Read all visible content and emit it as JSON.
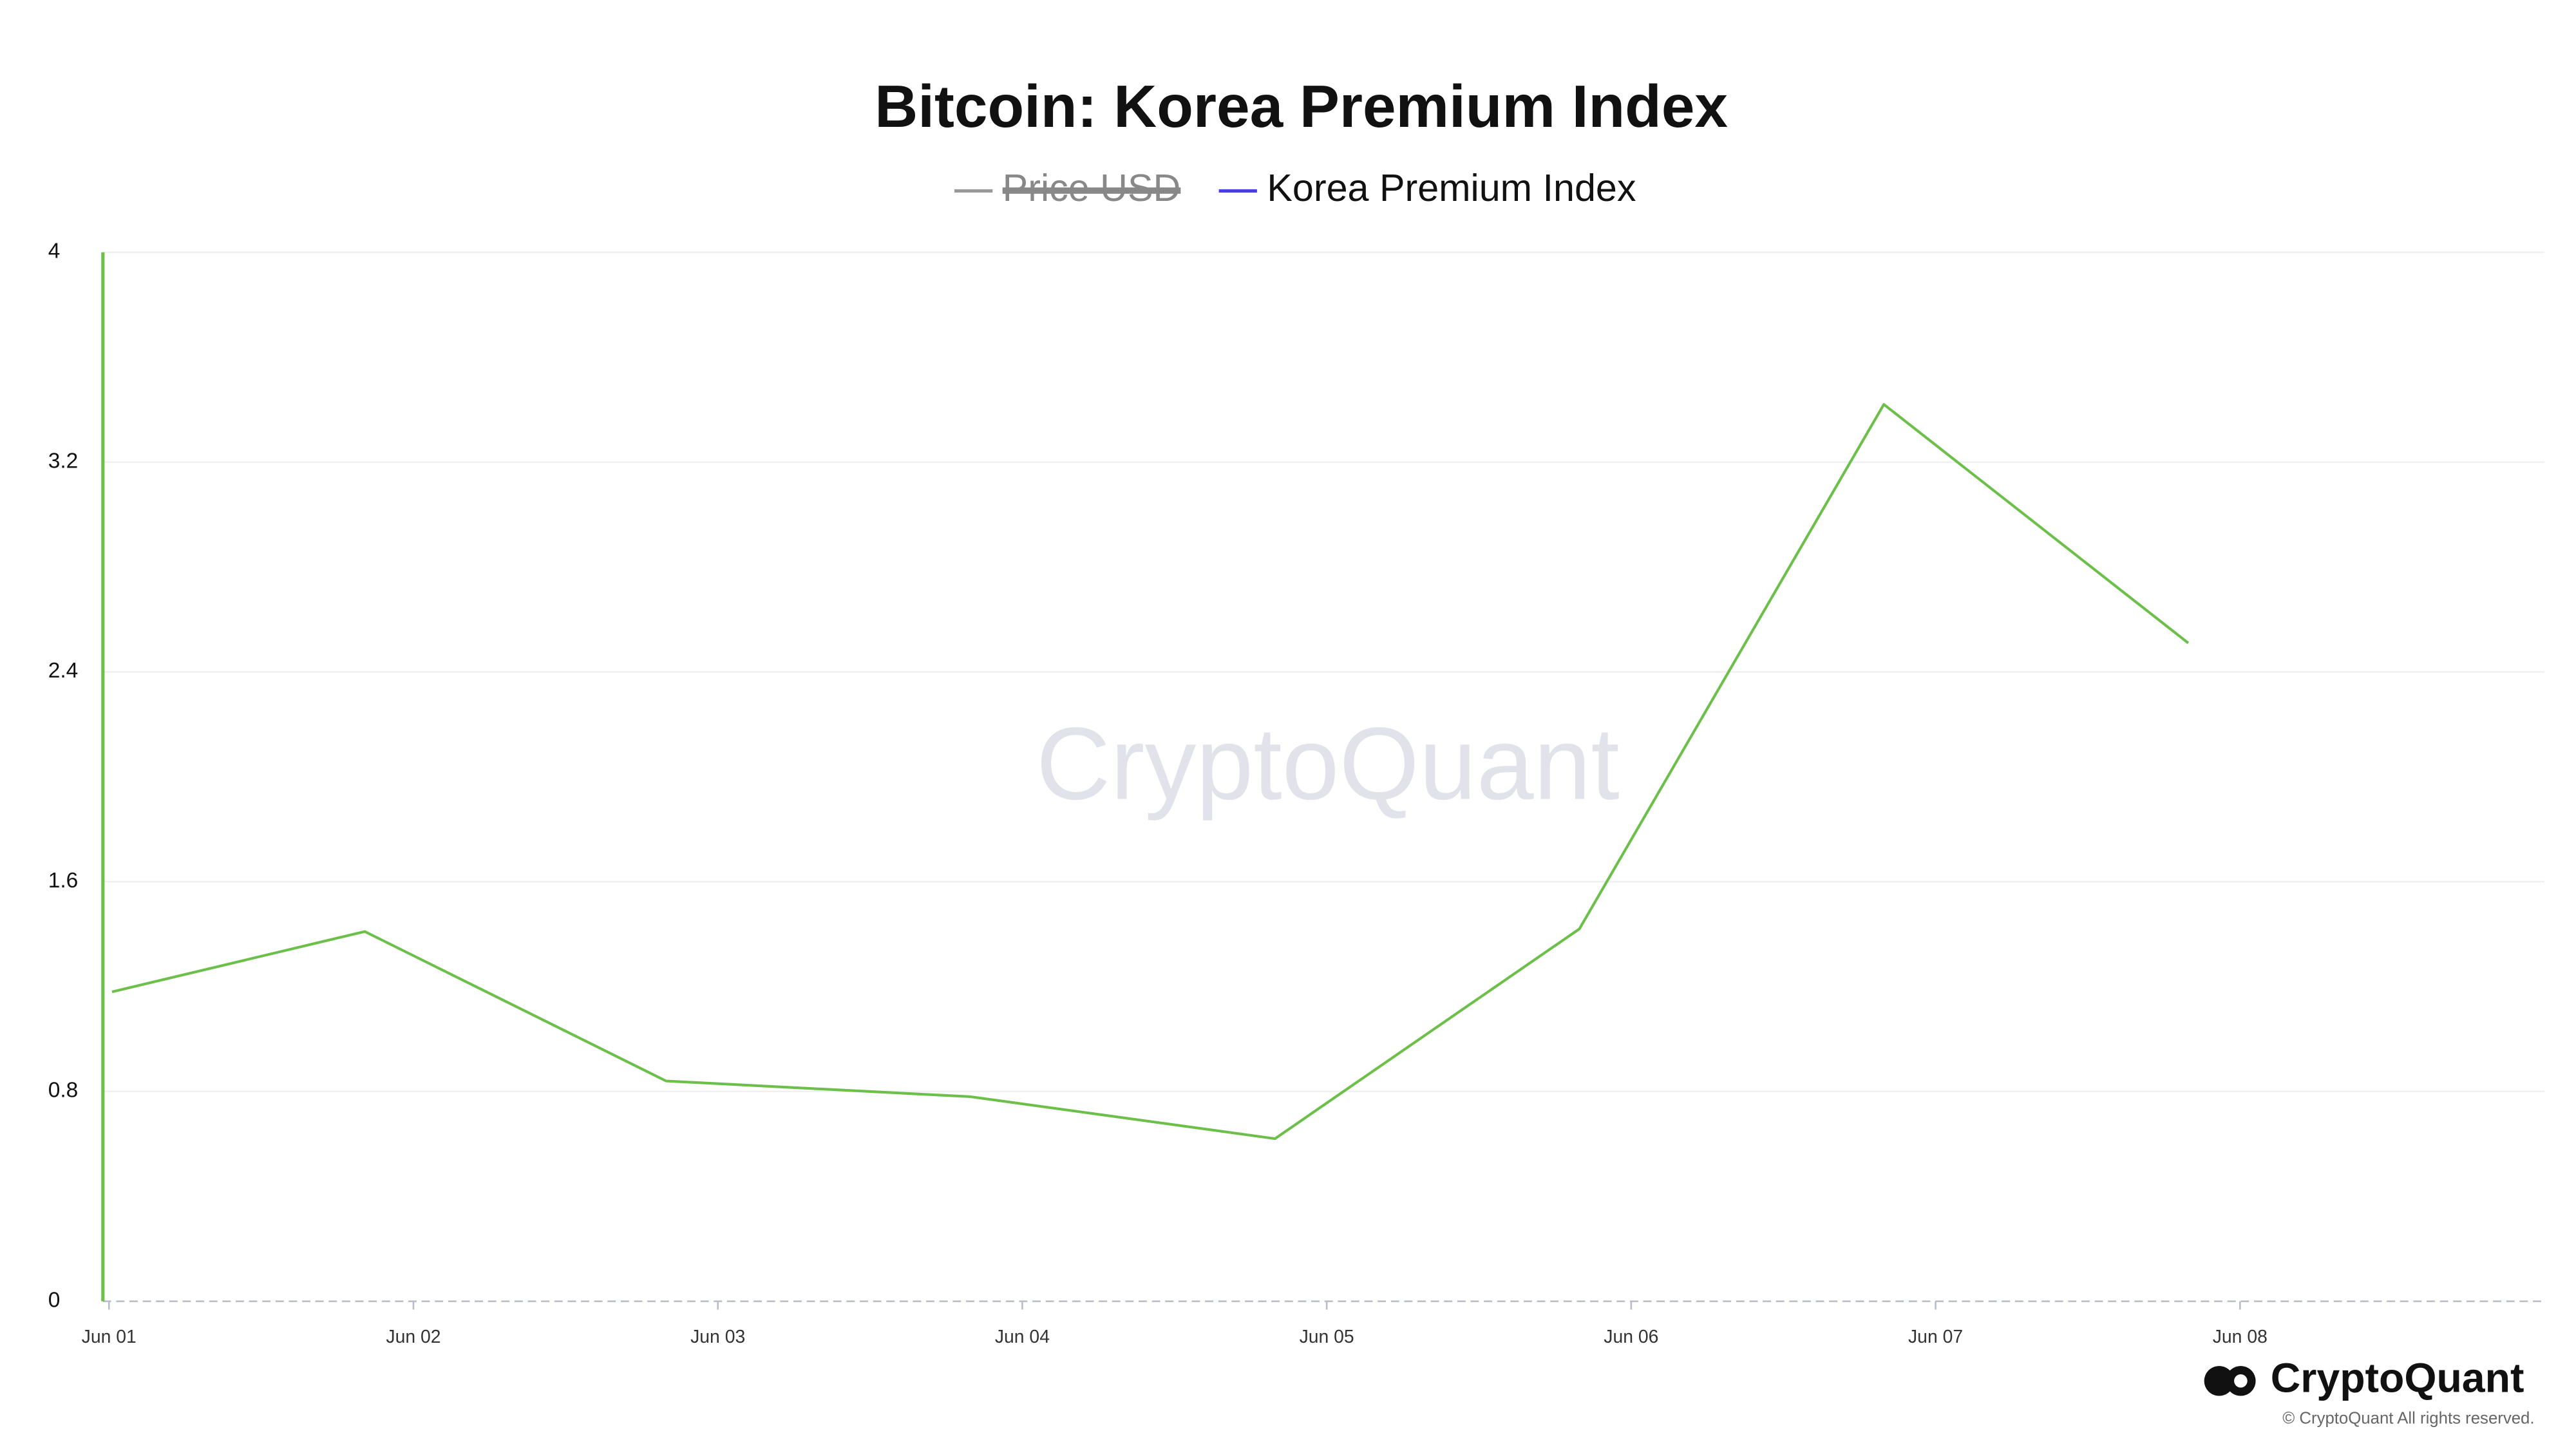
{
  "chart_data": {
    "type": "line",
    "title": "Bitcoin: Korea Premium Index",
    "x": [
      0.01,
      0.84,
      1.83,
      2.83,
      3.83,
      4.83,
      5.83,
      6.83
    ],
    "series": [
      {
        "name": "Price USD",
        "color": "#999999",
        "hidden": true,
        "values": null
      },
      {
        "name": "Korea Premium Index",
        "color": "#4a3fe0",
        "line_color": "#6cc04a",
        "values": [
          1.18,
          1.41,
          0.84,
          0.78,
          0.62,
          1.42,
          3.42,
          2.51
        ]
      }
    ],
    "xlim": [
      -0.02,
      8
    ],
    "xticks": [
      {
        "value": 0,
        "label": "Jun 01"
      },
      {
        "value": 1,
        "label": "Jun 02"
      },
      {
        "value": 2,
        "label": "Jun 03"
      },
      {
        "value": 3,
        "label": "Jun 04"
      },
      {
        "value": 4,
        "label": "Jun 05"
      },
      {
        "value": 5,
        "label": "Jun 06"
      },
      {
        "value": 6,
        "label": "Jun 07"
      },
      {
        "value": 7,
        "label": "Jun 08"
      }
    ],
    "ylim": [
      0,
      4
    ],
    "yticks": [
      0,
      0.8,
      1.6,
      2.4,
      3.2,
      4
    ],
    "grid": true,
    "legend": "top",
    "watermark": "CryptoQuant",
    "brand": "CryptoQuant",
    "copyright": "© CryptoQuant All rights reserved."
  }
}
